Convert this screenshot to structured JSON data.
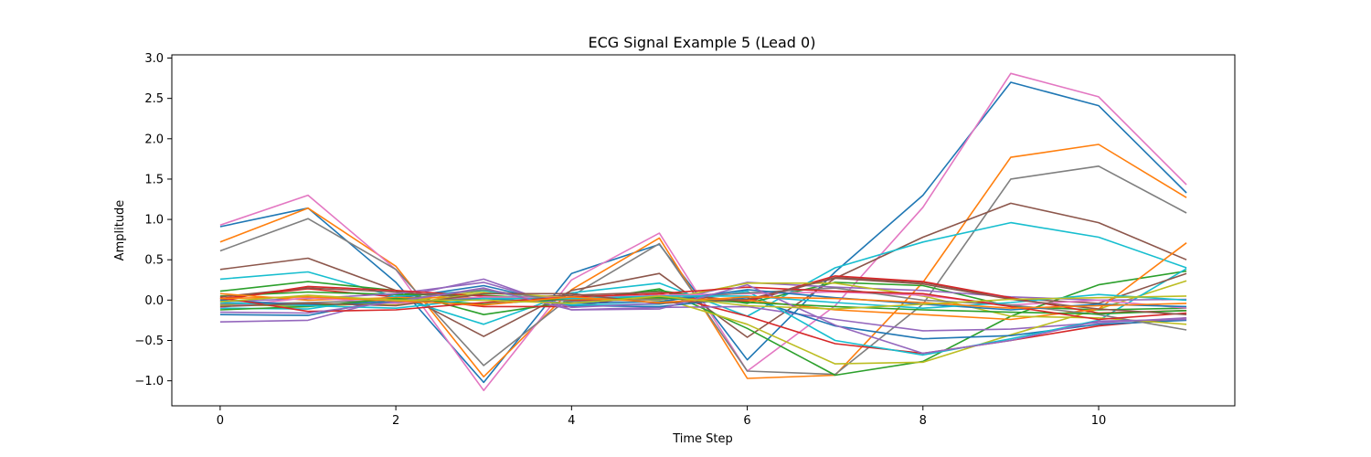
{
  "chart_data": {
    "type": "line",
    "title": "ECG Signal Example 5 (Lead 0)",
    "xlabel": "Time Step",
    "ylabel": "Amplitude",
    "xlim": [
      -0.55,
      11.55
    ],
    "ylim": [
      -1.31,
      3.04
    ],
    "xticks": [
      0,
      2,
      4,
      6,
      8,
      10
    ],
    "yticks": [
      -1.0,
      -0.5,
      0.0,
      0.5,
      1.0,
      1.5,
      2.0,
      2.5,
      3.0
    ],
    "ytick_labels": [
      "−1.0",
      "−0.5",
      "0.0",
      "0.5",
      "1.0",
      "1.5",
      "2.0",
      "2.5",
      "3.0"
    ],
    "grid": false,
    "legend": "none",
    "palette": [
      "#1f77b4",
      "#ff7f0e",
      "#2ca02c",
      "#d62728",
      "#9467bd",
      "#8c564b",
      "#e377c2",
      "#7f7f7f",
      "#bcbd22",
      "#17becf"
    ],
    "x": [
      0,
      1,
      2,
      3,
      4,
      5,
      6,
      7,
      8,
      9,
      10,
      11
    ],
    "series": [
      {
        "color": "#1f77b4",
        "values": [
          0.91,
          1.14,
          0.22,
          -1.02,
          0.33,
          0.69,
          -0.74,
          0.35,
          1.3,
          2.7,
          2.41,
          1.33
        ]
      },
      {
        "color": "#ff7f0e",
        "values": [
          0.72,
          1.14,
          0.42,
          -0.95,
          0.13,
          0.77,
          -0.97,
          -0.93,
          0.22,
          1.77,
          1.93,
          1.27
        ]
      },
      {
        "color": "#e377c2",
        "values": [
          0.93,
          1.3,
          0.38,
          -1.12,
          0.25,
          0.83,
          -0.88,
          -0.07,
          1.15,
          2.81,
          2.52,
          1.43
        ]
      },
      {
        "color": "#7f7f7f",
        "values": [
          0.61,
          1.01,
          0.38,
          -0.81,
          0.05,
          0.7,
          -0.88,
          -0.92,
          -0.05,
          1.5,
          1.66,
          1.08
        ]
      },
      {
        "color": "#8c564b",
        "values": [
          0.38,
          0.52,
          0.12,
          -0.45,
          0.12,
          0.33,
          -0.46,
          0.27,
          0.78,
          1.2,
          0.96,
          0.5
        ]
      },
      {
        "color": "#17becf",
        "values": [
          0.26,
          0.35,
          0.04,
          -0.3,
          0.09,
          0.21,
          -0.2,
          0.4,
          0.72,
          0.96,
          0.78,
          0.4
        ]
      },
      {
        "color": "#2ca02c",
        "values": [
          0.11,
          0.23,
          0.12,
          -0.18,
          -0.02,
          0.14,
          -0.35,
          -0.93,
          -0.76,
          -0.2,
          0.19,
          0.36
        ]
      },
      {
        "color": "#d62728",
        "values": [
          0.02,
          0.14,
          0.04,
          -0.08,
          -0.08,
          0.08,
          -0.2,
          -0.54,
          -0.66,
          -0.5,
          -0.32,
          -0.22
        ]
      },
      {
        "color": "#9467bd",
        "values": [
          -0.27,
          -0.25,
          0.03,
          0.26,
          -0.12,
          -0.09,
          -0.08,
          -0.24,
          -0.38,
          -0.36,
          -0.28,
          -0.22
        ]
      },
      {
        "color": "#bcbd22",
        "values": [
          -0.05,
          -0.08,
          -0.03,
          0.11,
          0.02,
          0.03,
          -0.3,
          -0.79,
          -0.77,
          -0.43,
          -0.11,
          0.24
        ]
      },
      {
        "color": "#1f77b4",
        "values": [
          -0.18,
          -0.19,
          0.02,
          0.18,
          -0.07,
          -0.08,
          0.03,
          -0.32,
          -0.48,
          -0.44,
          -0.3,
          -0.25
        ]
      },
      {
        "color": "#17becf",
        "values": [
          -0.1,
          -0.11,
          0.05,
          0.12,
          -0.06,
          -0.05,
          0.11,
          -0.5,
          -0.68,
          -0.48,
          -0.25,
          0.39
        ]
      },
      {
        "color": "#2ca02c",
        "values": [
          0.05,
          0.1,
          0.07,
          0.06,
          0.0,
          0.12,
          -0.04,
          0.22,
          0.18,
          -0.08,
          -0.12,
          -0.1
        ]
      },
      {
        "color": "#8c564b",
        "values": [
          0.04,
          0.15,
          0.1,
          0.02,
          0.06,
          0.1,
          -0.02,
          0.28,
          0.22,
          0.02,
          -0.04,
          0.33
        ]
      },
      {
        "color": "#9467bd",
        "values": [
          -0.02,
          0.02,
          0.08,
          0.22,
          -0.09,
          -0.04,
          0.22,
          0.16,
          0.12,
          0.04,
          0.0,
          0.01
        ]
      },
      {
        "color": "#d62728",
        "values": [
          0.0,
          0.17,
          0.12,
          0.05,
          -0.01,
          0.04,
          -0.01,
          0.3,
          0.23,
          0.03,
          -0.16,
          -0.13
        ]
      },
      {
        "color": "#ff7f0e",
        "values": [
          0.08,
          0.0,
          0.03,
          0.03,
          0.01,
          0.02,
          0.0,
          -0.12,
          -0.18,
          -0.24,
          -0.11,
          0.71
        ]
      },
      {
        "color": "#bcbd22",
        "values": [
          -0.07,
          -0.04,
          -0.06,
          0.09,
          0.03,
          0.0,
          0.21,
          0.21,
          0.05,
          -0.2,
          -0.22,
          -0.3
        ]
      },
      {
        "color": "#e377c2",
        "values": [
          -0.09,
          0.03,
          -0.04,
          0.04,
          0.03,
          0.06,
          0.08,
          0.1,
          0.06,
          -0.06,
          0.0,
          -0.1
        ]
      },
      {
        "color": "#7f7f7f",
        "values": [
          -0.05,
          -0.03,
          0.0,
          0.13,
          -0.02,
          0.01,
          0.09,
          0.15,
          0.0,
          -0.06,
          -0.18,
          -0.37
        ]
      },
      {
        "color": "#1f77b4",
        "values": [
          0.0,
          -0.06,
          -0.02,
          0.02,
          -0.04,
          -0.02,
          0.13,
          0.03,
          -0.05,
          -0.12,
          -0.05,
          -0.08
        ]
      },
      {
        "color": "#2ca02c",
        "values": [
          -0.12,
          -0.08,
          0.02,
          -0.05,
          0.02,
          0.03,
          -0.03,
          -0.08,
          -0.12,
          -0.15,
          -0.17,
          -0.13
        ]
      },
      {
        "color": "#17becf",
        "values": [
          -0.03,
          -0.07,
          -0.1,
          0.02,
          0.02,
          0.05,
          0.05,
          -0.03,
          -0.1,
          -0.03,
          0.07,
          0.0
        ]
      },
      {
        "color": "#d62728",
        "values": [
          0.03,
          -0.14,
          -0.12,
          -0.03,
          0.04,
          0.08,
          0.16,
          0.11,
          0.08,
          -0.08,
          -0.24,
          -0.16
        ]
      },
      {
        "color": "#8c564b",
        "values": [
          -0.08,
          -0.04,
          -0.07,
          0.08,
          0.08,
          -0.04,
          0.01,
          0.27,
          0.2,
          0.01,
          -0.11,
          -0.18
        ]
      },
      {
        "color": "#9467bd",
        "values": [
          -0.15,
          -0.16,
          -0.02,
          0.15,
          -0.12,
          -0.11,
          0.19,
          -0.31,
          -0.66,
          -0.5,
          -0.26,
          -0.24
        ]
      },
      {
        "color": "#ff7f0e",
        "values": [
          0.02,
          0.04,
          -0.01,
          -0.06,
          0.04,
          -0.03,
          0.04,
          0.02,
          -0.03,
          -0.1,
          -0.07,
          -0.04
        ]
      },
      {
        "color": "#bcbd22",
        "values": [
          -0.02,
          0.06,
          0.0,
          0.0,
          -0.04,
          0.05,
          -0.07,
          -0.11,
          -0.05,
          0.01,
          0.03,
          0.05
        ]
      }
    ]
  }
}
